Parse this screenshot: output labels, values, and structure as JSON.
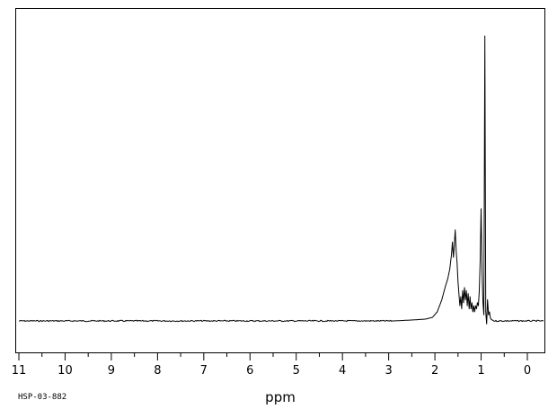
{
  "chart_data": {
    "type": "line",
    "title": "",
    "xlabel": "ppm",
    "ylabel": "",
    "sample_code": "HSP-03-882",
    "xlim": [
      11,
      0
    ],
    "x_reversed": true,
    "xticks": [
      11,
      10,
      9,
      8,
      7,
      6,
      5,
      4,
      3,
      2,
      1,
      0
    ],
    "baseline": 0,
    "ylim": [
      -0.1,
      1.0
    ],
    "grid": false,
    "legend": "none",
    "series": [
      {
        "x": [
          11.0,
          2.9,
          2.5,
          2.2,
          2.05,
          1.95,
          1.85,
          1.78,
          1.72,
          1.68,
          1.64,
          1.62,
          1.6,
          1.58,
          1.56,
          1.54,
          1.52,
          1.5,
          1.48,
          1.46,
          1.44,
          1.42,
          1.4,
          1.38,
          1.36,
          1.34,
          1.32,
          1.3,
          1.28,
          1.26,
          1.24,
          1.22,
          1.2,
          1.18,
          1.16,
          1.14,
          1.12,
          1.1,
          1.08,
          1.06,
          1.04,
          1.02,
          1.0,
          0.98,
          0.96,
          0.94,
          0.92,
          0.9,
          0.88,
          0.86,
          0.84,
          0.82,
          0.8,
          0.78,
          0.76,
          0.72,
          0.6,
          0.45,
          0.3,
          0.15,
          0.0,
          -0.35
        ],
        "y": [
          0.0,
          0.0,
          0.003,
          0.006,
          0.012,
          0.03,
          0.07,
          0.11,
          0.14,
          0.17,
          0.22,
          0.26,
          0.21,
          0.25,
          0.3,
          0.23,
          0.19,
          0.13,
          0.09,
          0.05,
          0.08,
          0.04,
          0.1,
          0.06,
          0.11,
          0.07,
          0.1,
          0.05,
          0.09,
          0.04,
          0.08,
          0.04,
          0.06,
          0.03,
          0.05,
          0.03,
          0.05,
          0.04,
          0.06,
          0.05,
          0.1,
          0.2,
          0.37,
          0.16,
          0.06,
          0.02,
          0.94,
          0.03,
          -0.01,
          0.07,
          0.02,
          0.03,
          0.01,
          0.005,
          0.003,
          0.0,
          0.0,
          0.0,
          0.0,
          0.0,
          0.0,
          0.0
        ]
      }
    ]
  }
}
